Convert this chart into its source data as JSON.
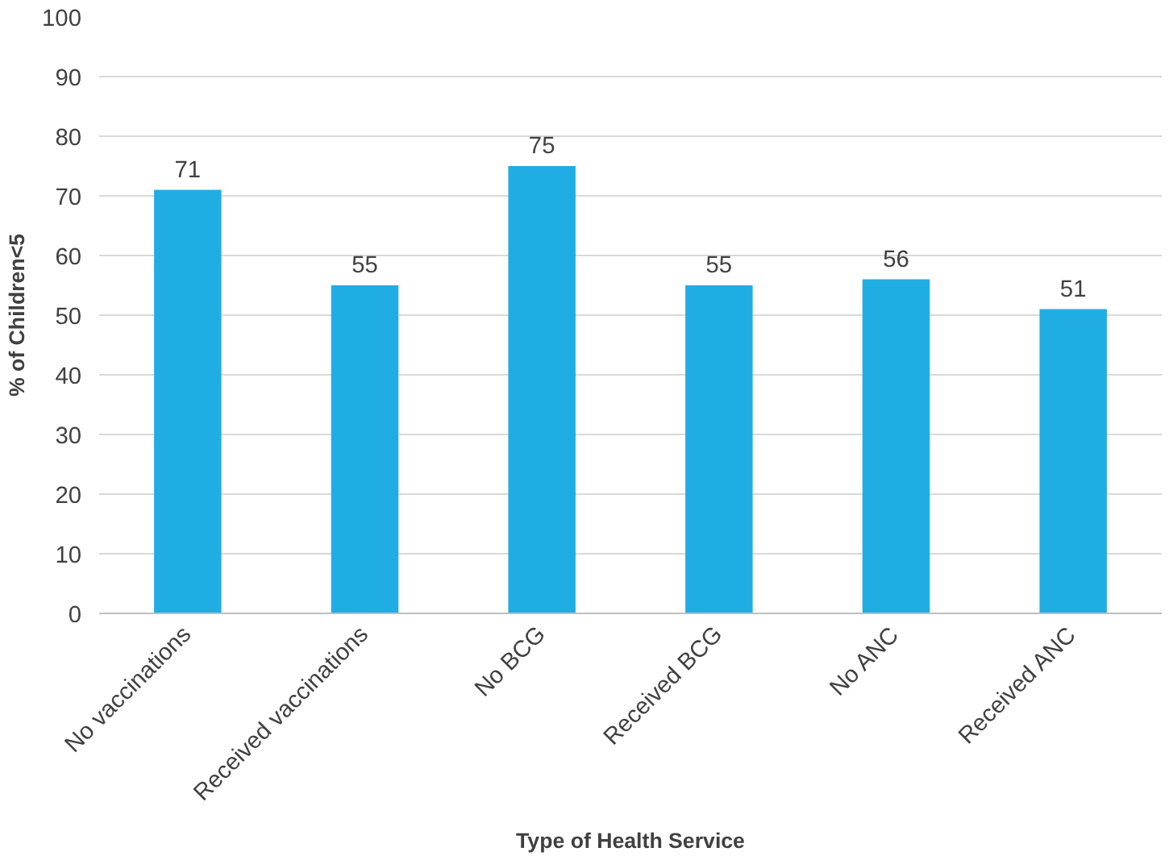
{
  "chart_data": {
    "type": "bar",
    "xlabel": "Type of Health Service",
    "ylabel": "% of Children<5",
    "categories": [
      "No vaccinations",
      "Received vaccinations",
      "No BCG",
      "Received BCG",
      "No ANC",
      "Received ANC"
    ],
    "values": [
      71,
      55,
      75,
      55,
      56,
      51
    ],
    "color": "#1fade4",
    "ylim": [
      0,
      100
    ],
    "yticks": [
      0,
      10,
      20,
      30,
      40,
      50,
      60,
      70,
      80,
      90,
      100
    ],
    "grid": "y",
    "data_labels": true
  }
}
